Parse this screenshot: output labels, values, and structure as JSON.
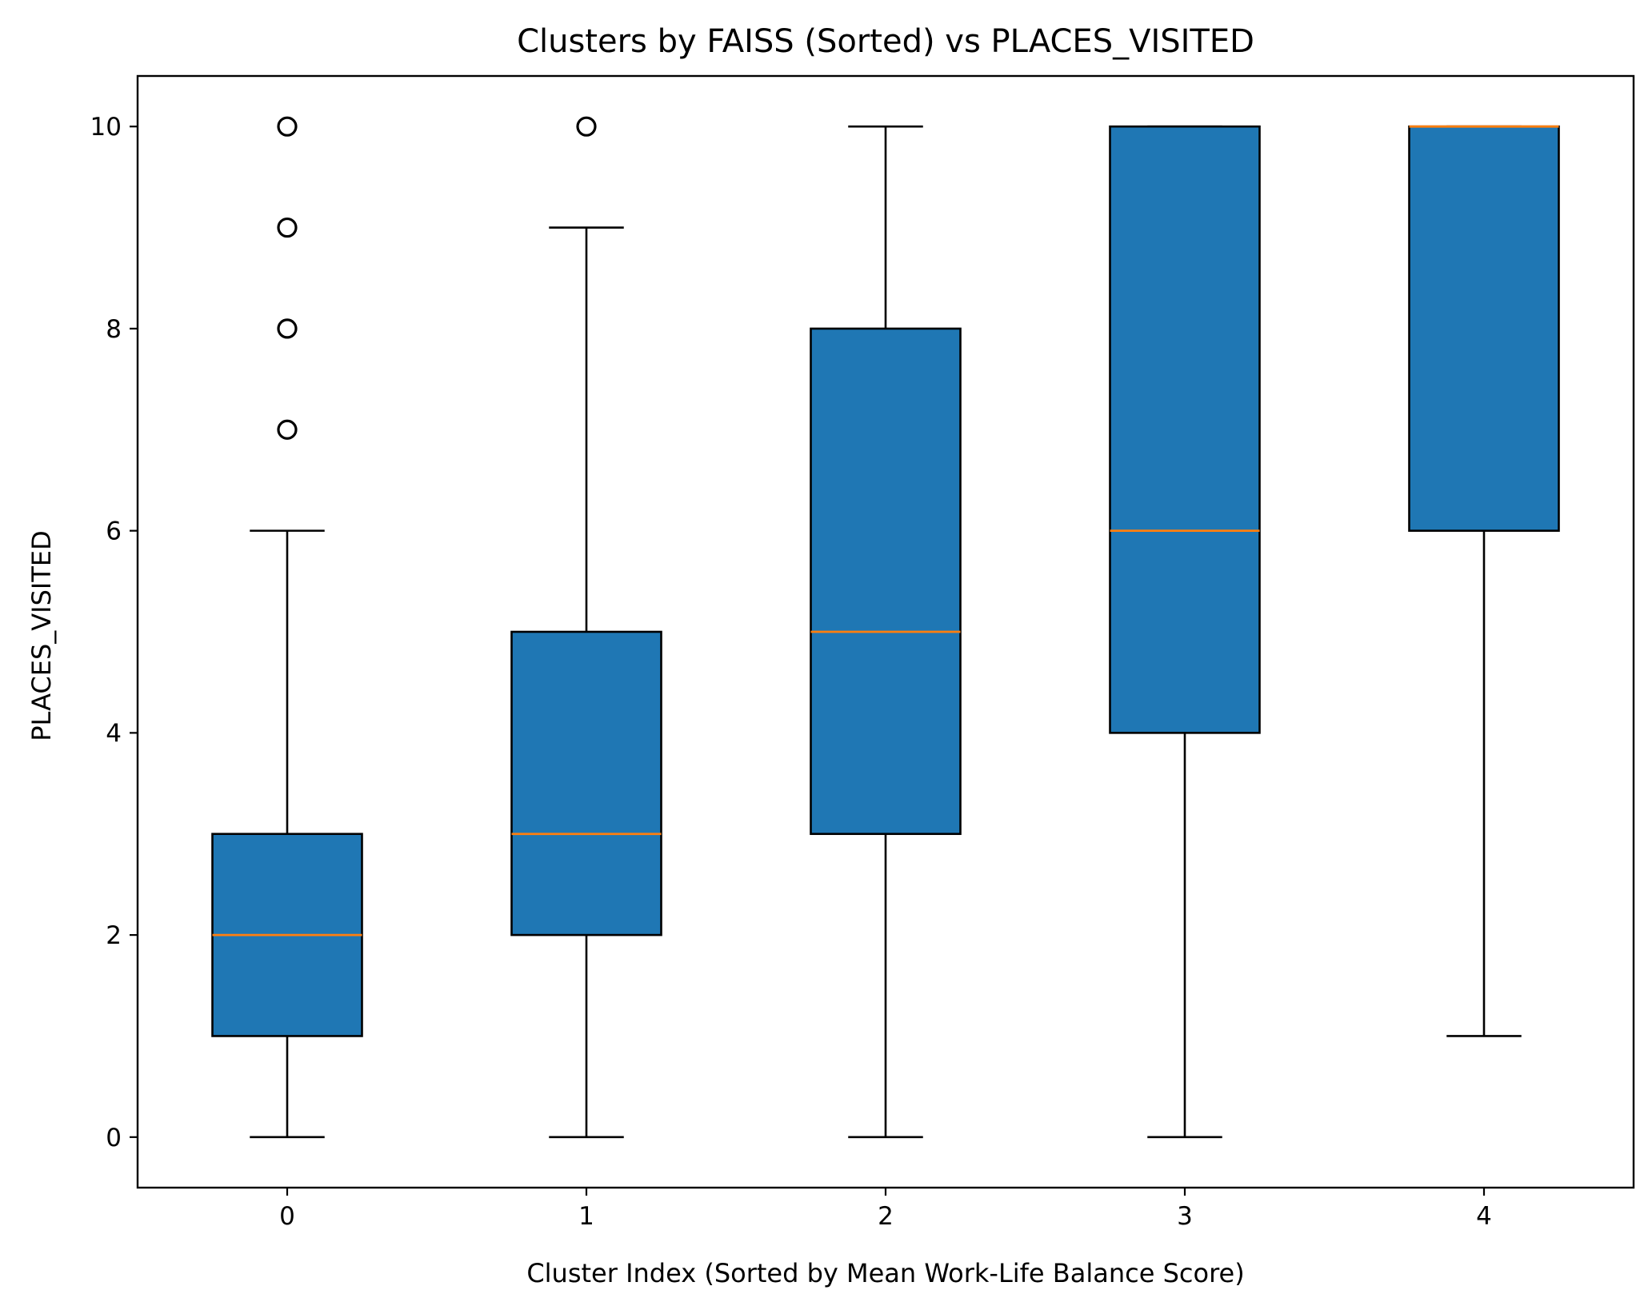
{
  "chart_data": {
    "type": "box",
    "title": "Clusters by FAISS (Sorted) vs PLACES_VISITED",
    "xlabel": "Cluster Index (Sorted by Mean Work-Life Balance Score)",
    "ylabel": "PLACES_VISITED",
    "ylim": [
      -0.5,
      10.5
    ],
    "yticks": [
      0,
      2,
      4,
      6,
      8,
      10
    ],
    "categories": [
      "0",
      "1",
      "2",
      "3",
      "4"
    ],
    "box_color": "#1f77b4",
    "median_color": "#ff7f0e",
    "edge_color": "#000000",
    "grid": false,
    "boxes": [
      {
        "category": "0",
        "whisker_low": 0,
        "q1": 1,
        "median": 2,
        "q3": 3,
        "whisker_high": 6,
        "outliers": [
          7,
          8,
          9,
          10
        ]
      },
      {
        "category": "1",
        "whisker_low": 0,
        "q1": 2,
        "median": 3,
        "q3": 5,
        "whisker_high": 9,
        "outliers": [
          10
        ]
      },
      {
        "category": "2",
        "whisker_low": 0,
        "q1": 3,
        "median": 5,
        "q3": 8,
        "whisker_high": 10,
        "outliers": []
      },
      {
        "category": "3",
        "whisker_low": 0,
        "q1": 4,
        "median": 6,
        "q3": 10,
        "whisker_high": 10,
        "outliers": []
      },
      {
        "category": "4",
        "whisker_low": 1,
        "q1": 6,
        "median": 10,
        "q3": 10,
        "whisker_high": 10,
        "outliers": []
      }
    ]
  }
}
